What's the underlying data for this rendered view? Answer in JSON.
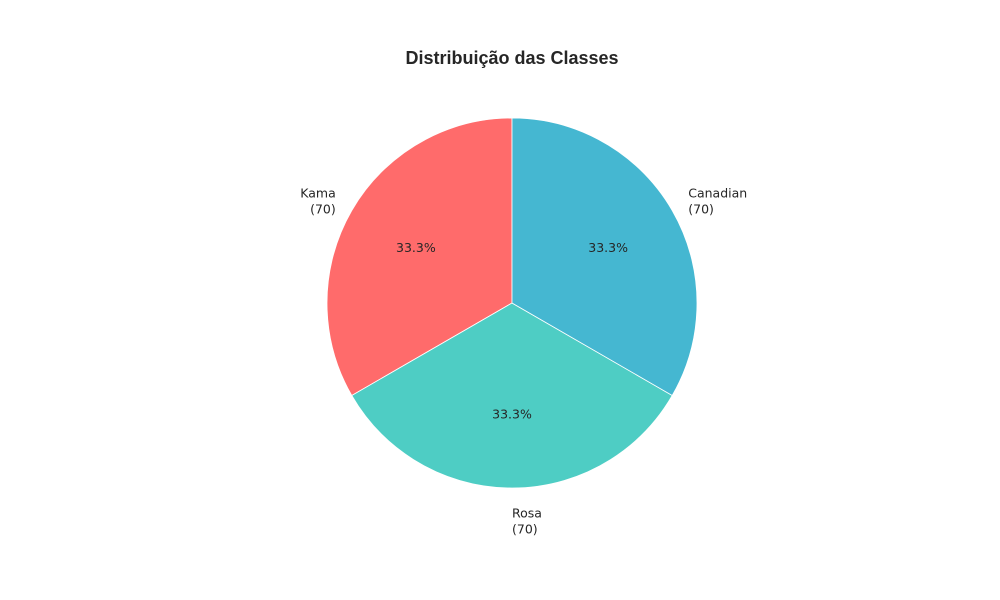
{
  "chart_data": {
    "type": "pie",
    "title": "Distribuição das Classes",
    "start_angle_deg": 90,
    "direction": "counterclockwise",
    "slices": [
      {
        "label": "Kama",
        "count": "(70)",
        "value": 70,
        "pct": "33.3%",
        "color": "#FF6B6B"
      },
      {
        "label": "Rosa",
        "count": "(70)",
        "value": 70,
        "pct": "33.3%",
        "color": "#4ECDC4"
      },
      {
        "label": "Canadian",
        "count": "(70)",
        "value": 70,
        "pct": "33.3%",
        "color": "#45B7D1"
      }
    ]
  }
}
